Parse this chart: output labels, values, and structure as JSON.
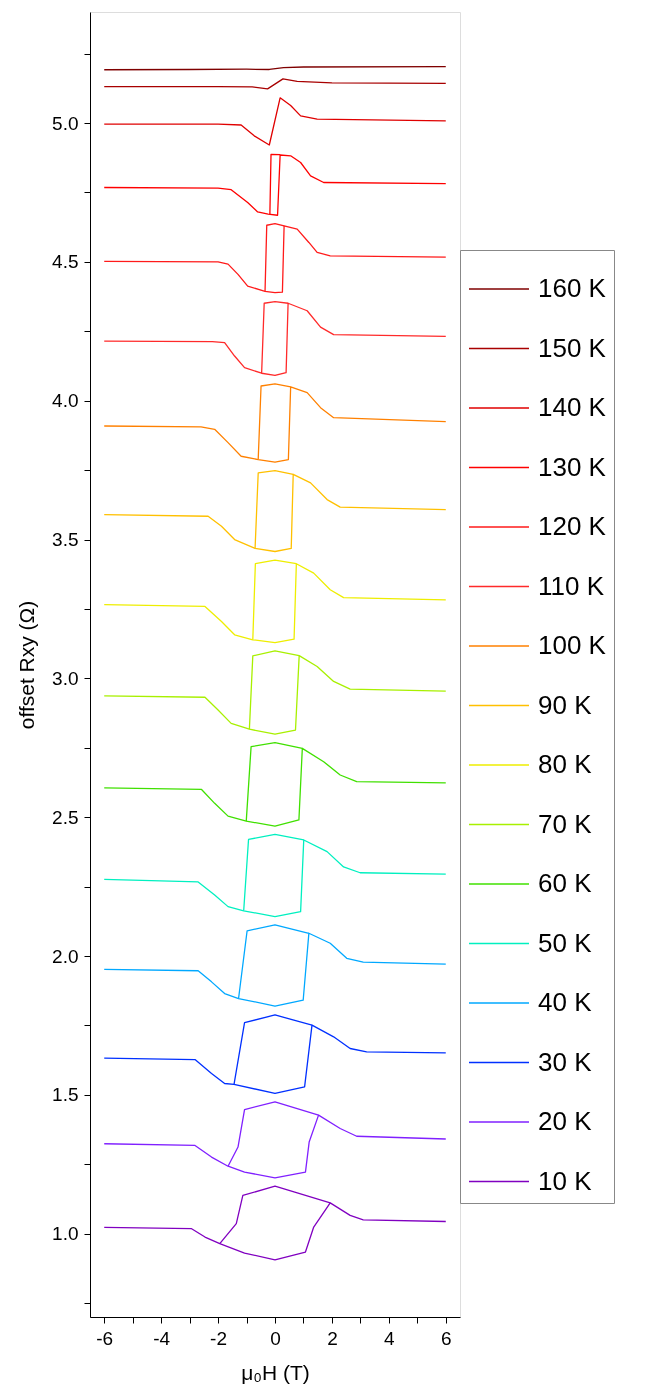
{
  "chart_data": {
    "type": "line",
    "xlabel": "μ₀H (T)",
    "ylabel": "offset Rxy (Ω)",
    "xlim": [
      -6.5,
      6.5
    ],
    "ylim": [
      0.7,
      5.4
    ],
    "xticks": [
      -6,
      {
        "value": -5,
        "label": null
      },
      -4,
      {
        "value": -3,
        "label": null
      },
      -2,
      {
        "value": -1,
        "label": null
      },
      0,
      {
        "value": 1,
        "label": null
      },
      2,
      {
        "value": 3,
        "label": null
      },
      4,
      {
        "value": 5,
        "label": null
      },
      6
    ],
    "yticks": [
      {
        "value": 0.75,
        "label": null
      },
      {
        "value": 1,
        "label": "1.0"
      },
      {
        "value": 1.25,
        "label": null
      },
      {
        "value": 1.5,
        "label": "1.5"
      },
      {
        "value": 1.75,
        "label": null
      },
      {
        "value": 2,
        "label": "2.0"
      },
      {
        "value": 2.25,
        "label": null
      },
      {
        "value": 2.5,
        "label": "2.5"
      },
      {
        "value": 2.75,
        "label": null
      },
      {
        "value": 3,
        "label": "3.0"
      },
      {
        "value": 3.25,
        "label": null
      },
      {
        "value": 3.5,
        "label": "3.5"
      },
      {
        "value": 3.75,
        "label": null
      },
      {
        "value": 4,
        "label": "4.0"
      },
      {
        "value": 4.25,
        "label": null
      },
      {
        "value": 4.5,
        "label": "4.5"
      },
      {
        "value": 4.75,
        "label": null
      },
      {
        "value": 5,
        "label": "5.0"
      },
      {
        "value": 5.25,
        "label": null
      }
    ],
    "grid": false,
    "legend": "right",
    "marker": "none",
    "line_style": "solid",
    "series": [
      {
        "name": "160 K",
        "color": "#7f0000",
        "x": [
          -6,
          -3,
          -1,
          -0.2,
          0.3,
          1,
          6
        ],
        "values": [
          5.192,
          5.193,
          5.194,
          5.193,
          5.2,
          5.202,
          5.203
        ]
      },
      {
        "name": "150 K",
        "color": "#a80000",
        "x": [
          -6,
          -2,
          -0.8,
          -0.26,
          0.28,
          0.78,
          2,
          6
        ],
        "values": [
          5.131,
          5.131,
          5.13,
          5.123,
          5.159,
          5.15,
          5.145,
          5.143
        ]
      },
      {
        "name": "140 K",
        "color": "#e00000",
        "x": [
          -6,
          -2,
          -1.19,
          -0.73,
          -0.2,
          0.18,
          0.55,
          0.9,
          1.48,
          6
        ],
        "values": [
          4.996,
          4.996,
          4.993,
          4.954,
          4.921,
          5.091,
          5.063,
          5.026,
          5.014,
          5.008
        ]
      },
      {
        "name": "130 K",
        "color": "#ff0000",
        "x": [
          -6,
          -2,
          -1.54,
          -0.96,
          -0.61,
          -0.24,
          0.09,
          0.18,
          0.55,
          0.9,
          1.25,
          1.71,
          6
        ],
        "values": [
          4.768,
          4.766,
          4.76,
          4.714,
          4.68,
          4.672,
          4.668,
          4.885,
          4.882,
          4.858,
          4.81,
          4.786,
          4.782
        ]
      },
      {
        "color": "#ff0000",
        "x": [
          -0.18,
          -0.14,
          0.18
        ],
        "values": [
          4.672,
          4.887,
          4.886
        ]
      },
      {
        "name": "120 K",
        "color": "#ff1a1a",
        "x": [
          -6,
          -2,
          -1.65,
          -1.3,
          -0.96,
          -0.35,
          0,
          0.26,
          0.32,
          0.78,
          1.19,
          1.48,
          1.94,
          6
        ],
        "values": [
          4.502,
          4.5,
          4.492,
          4.455,
          4.413,
          4.394,
          4.389,
          4.391,
          4.63,
          4.618,
          4.57,
          4.534,
          4.522,
          4.517
        ]
      },
      {
        "color": "#ff1a1a",
        "x": [
          -0.35,
          -0.29,
          0,
          0.32
        ],
        "values": [
          4.394,
          4.632,
          4.638,
          4.63
        ]
      },
      {
        "name": "110 K",
        "color": "#ff2a2a",
        "x": [
          -6,
          -2.2,
          -1.77,
          -1.42,
          -1.07,
          -0.47,
          0,
          0.39,
          0.46,
          1.13,
          1.6,
          2.06,
          6
        ],
        "values": [
          4.215,
          4.213,
          4.209,
          4.161,
          4.119,
          4.099,
          4.091,
          4.101,
          4.351,
          4.324,
          4.265,
          4.238,
          4.232
        ]
      },
      {
        "color": "#ff2a2a",
        "x": [
          -0.47,
          -0.38,
          0,
          0.46
        ],
        "values": [
          4.099,
          4.351,
          4.357,
          4.351
        ]
      },
      {
        "name": "100 K",
        "color": "#ff8000",
        "x": [
          -6,
          -2.6,
          -2.12,
          -1.65,
          -1.19,
          -0.59,
          0,
          0.47,
          0.55,
          1.13,
          1.6,
          2.06,
          6
        ],
        "values": [
          3.909,
          3.906,
          3.897,
          3.849,
          3.8,
          3.788,
          3.779,
          3.788,
          4.05,
          4.029,
          3.975,
          3.939,
          3.925
        ]
      },
      {
        "color": "#ff8000",
        "x": [
          -0.59,
          -0.49,
          0,
          0.55
        ],
        "values": [
          3.788,
          4.053,
          4.061,
          4.05
        ]
      },
      {
        "name": "90 K",
        "color": "#ffc000",
        "x": [
          -6,
          -2.35,
          -1.88,
          -1.42,
          -0.7,
          0,
          0.57,
          0.64,
          1.25,
          1.83,
          2.29,
          6
        ],
        "values": [
          3.59,
          3.584,
          3.548,
          3.5,
          3.468,
          3.457,
          3.468,
          3.735,
          3.704,
          3.644,
          3.617,
          3.608
        ]
      },
      {
        "color": "#ffc000",
        "x": [
          -0.7,
          -0.59,
          0,
          0.64
        ],
        "values": [
          3.468,
          3.74,
          3.748,
          3.735
        ]
      },
      {
        "name": "80 K",
        "color": "#eeee00",
        "x": [
          -6,
          -2.46,
          -1.88,
          -1.42,
          -0.78,
          0,
          0.67,
          0.75,
          1.36,
          1.94,
          2.41,
          6
        ],
        "values": [
          3.266,
          3.259,
          3.205,
          3.157,
          3.139,
          3.129,
          3.141,
          3.413,
          3.379,
          3.319,
          3.291,
          3.283
        ]
      },
      {
        "color": "#eeee00",
        "x": [
          -0.78,
          -0.69,
          0,
          0.75
        ],
        "values": [
          3.139,
          3.413,
          3.426,
          3.413
        ]
      },
      {
        "name": "70 K",
        "color": "#a8f000",
        "x": [
          -6,
          -2.46,
          -2,
          -1.54,
          -0.9,
          0,
          0.72,
          0.85,
          1.48,
          2.06,
          2.64,
          6
        ],
        "values": [
          2.937,
          2.932,
          2.886,
          2.838,
          2.817,
          2.799,
          2.814,
          3.082,
          3.043,
          2.989,
          2.961,
          2.954
        ]
      },
      {
        "color": "#a8f000",
        "x": [
          -0.9,
          -0.78,
          0,
          0.85
        ],
        "values": [
          2.817,
          3.081,
          3.099,
          3.082
        ]
      },
      {
        "name": "60 K",
        "color": "#40e000",
        "x": [
          -6,
          -2.58,
          -2.12,
          -1.65,
          -1.01,
          0,
          0.84,
          0.96,
          1.71,
          2.29,
          2.87,
          6
        ],
        "values": [
          2.606,
          2.6,
          2.55,
          2.504,
          2.486,
          2.468,
          2.49,
          2.748,
          2.7,
          2.652,
          2.628,
          2.624
        ]
      },
      {
        "color": "#40e000",
        "x": [
          -1.01,
          -0.84,
          0,
          0.96
        ],
        "values": [
          2.486,
          2.754,
          2.769,
          2.748
        ]
      },
      {
        "name": "50 K",
        "color": "#00f0c0",
        "x": [
          -6,
          -2.7,
          -2.12,
          -1.65,
          -1.1,
          0,
          0.9,
          1.01,
          1.83,
          2.41,
          2.99,
          6
        ],
        "values": [
          2.276,
          2.267,
          2.22,
          2.178,
          2.163,
          2.142,
          2.16,
          2.418,
          2.376,
          2.321,
          2.3,
          2.295
        ]
      },
      {
        "color": "#00f0c0",
        "x": [
          -1.1,
          -0.93,
          0,
          1.01
        ],
        "values": [
          2.163,
          2.42,
          2.438,
          2.418
        ]
      },
      {
        "name": "40 K",
        "color": "#00a8ff",
        "x": [
          -6,
          -2.7,
          -2.23,
          -1.77,
          -1.28,
          0,
          0.99,
          1.19,
          1.94,
          2.52,
          3.1,
          6
        ],
        "values": [
          1.952,
          1.947,
          1.907,
          1.865,
          1.847,
          1.82,
          1.841,
          2.082,
          2.046,
          1.992,
          1.978,
          1.971
        ]
      },
      {
        "color": "#00a8ff",
        "x": [
          -1.28,
          -0.98,
          0,
          1.19
        ],
        "values": [
          1.847,
          2.091,
          2.112,
          2.082
        ]
      },
      {
        "name": "30 K",
        "color": "#0030ff",
        "x": [
          -6,
          -2.81,
          -2.23,
          -1.77,
          -1.44,
          0,
          1.04,
          1.3,
          2.06,
          2.64,
          3.22,
          6
        ],
        "values": [
          1.632,
          1.627,
          1.577,
          1.541,
          1.538,
          1.505,
          1.529,
          1.751,
          1.709,
          1.667,
          1.655,
          1.651
        ]
      },
      {
        "color": "#0030ff",
        "x": [
          -1.44,
          -1.07,
          0,
          1.3
        ],
        "values": [
          1.538,
          1.76,
          1.788,
          1.751
        ]
      },
      {
        "name": "20 K",
        "color": "#8020ff",
        "x": [
          -6,
          -2.81,
          -2.23,
          -1.65,
          -1.07,
          0,
          1.07,
          1.2,
          1.53,
          2.29,
          2.87,
          6
        ],
        "values": [
          1.324,
          1.318,
          1.276,
          1.243,
          1.222,
          1.201,
          1.222,
          1.33,
          1.427,
          1.379,
          1.351,
          1.341
        ]
      },
      {
        "color": "#8020ff",
        "x": [
          -1.65,
          -1.3,
          -1.07,
          0,
          1.53
        ],
        "values": [
          1.243,
          1.312,
          1.447,
          1.475,
          1.427
        ]
      },
      {
        "name": "10 K",
        "color": "#8000c0",
        "x": [
          -6,
          -2.93,
          -2.46,
          -1.94,
          -1.07,
          0,
          1.07,
          1.36,
          1.94,
          2.64,
          3.1,
          6
        ],
        "values": [
          1.023,
          1.018,
          0.988,
          0.964,
          0.93,
          0.906,
          0.934,
          1.024,
          1.111,
          1.066,
          1.05,
          1.044
        ]
      },
      {
        "color": "#8000c0",
        "x": [
          -1.94,
          -1.36,
          -1.13,
          0,
          1.94
        ],
        "values": [
          0.964,
          1.036,
          1.138,
          1.171,
          1.111
        ]
      }
    ]
  }
}
